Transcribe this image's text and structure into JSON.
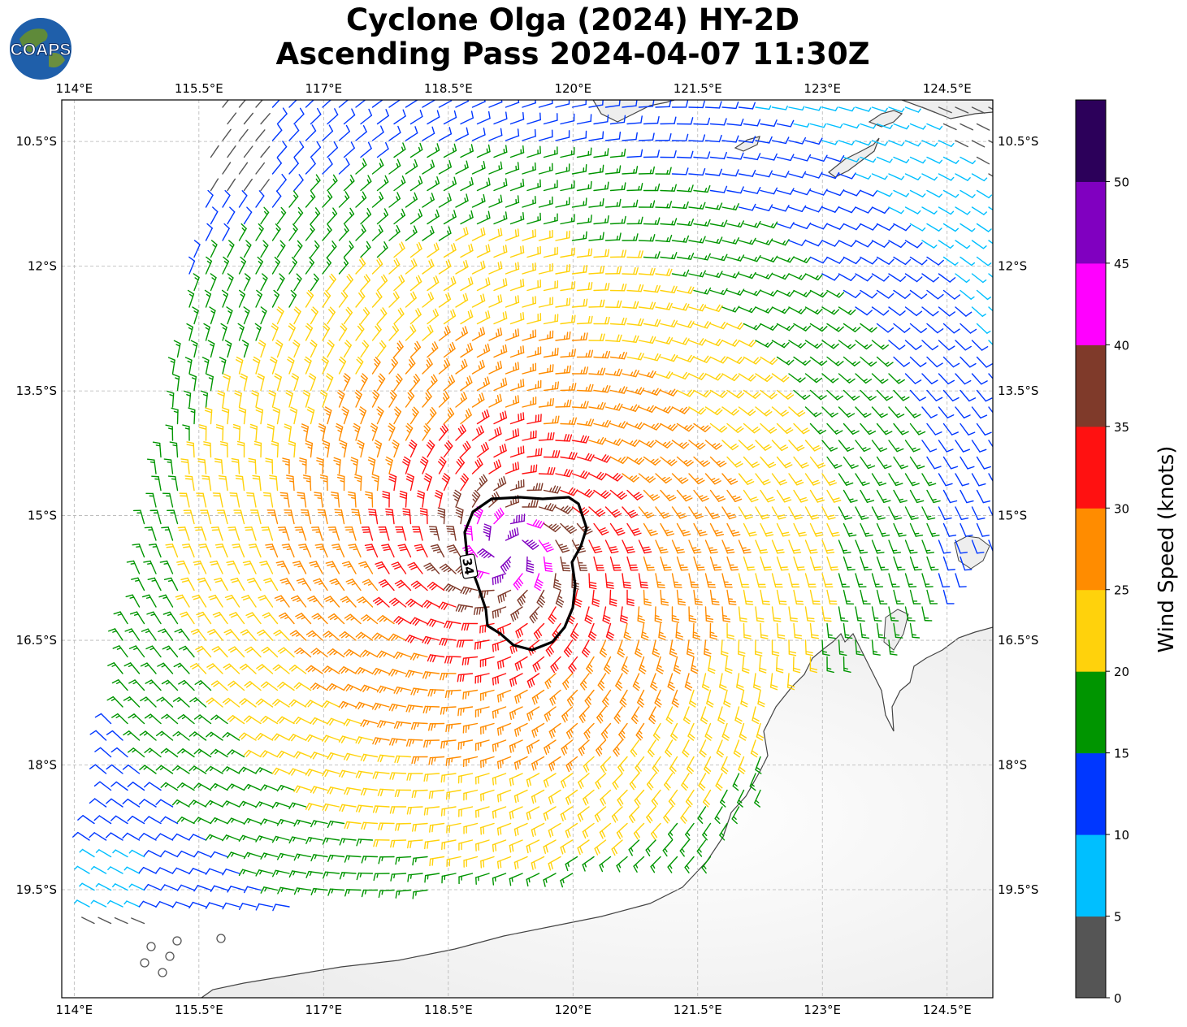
{
  "title": {
    "line1": "Cyclone Olga (2024) HY-2D",
    "line2": "Ascending Pass 2024-04-07 11:30Z"
  },
  "logo": {
    "text": "COAPS"
  },
  "map": {
    "extent": {
      "lon": [
        113.85,
        125.05
      ],
      "lat_top": -10.0,
      "lat_bottom": -20.8
    },
    "lon_ticks": [
      "114°E",
      "115.5°E",
      "117°E",
      "118.5°E",
      "120°E",
      "121.5°E",
      "123°E",
      "124.5°E"
    ],
    "lat_ticks": [
      "10.5°S",
      "12°S",
      "13.5°S",
      "15°S",
      "16.5°S",
      "18°S",
      "19.5°S"
    ],
    "storm_center": {
      "lon": 119.2,
      "lat": -15.4
    },
    "contour_label": "34",
    "grid": true
  },
  "colorbar": {
    "label": "Wind Speed (knots)",
    "ticks": [
      "0",
      "5",
      "10",
      "15",
      "20",
      "25",
      "30",
      "35",
      "40",
      "45",
      "50"
    ],
    "colors": [
      "#555555",
      "#00bfff",
      "#0037ff",
      "#009500",
      "#ffd20c",
      "#ff8c00",
      "#ff1111",
      "#7f3a2a",
      "#ff00ff",
      "#8000c0",
      "#2c005a"
    ]
  }
}
